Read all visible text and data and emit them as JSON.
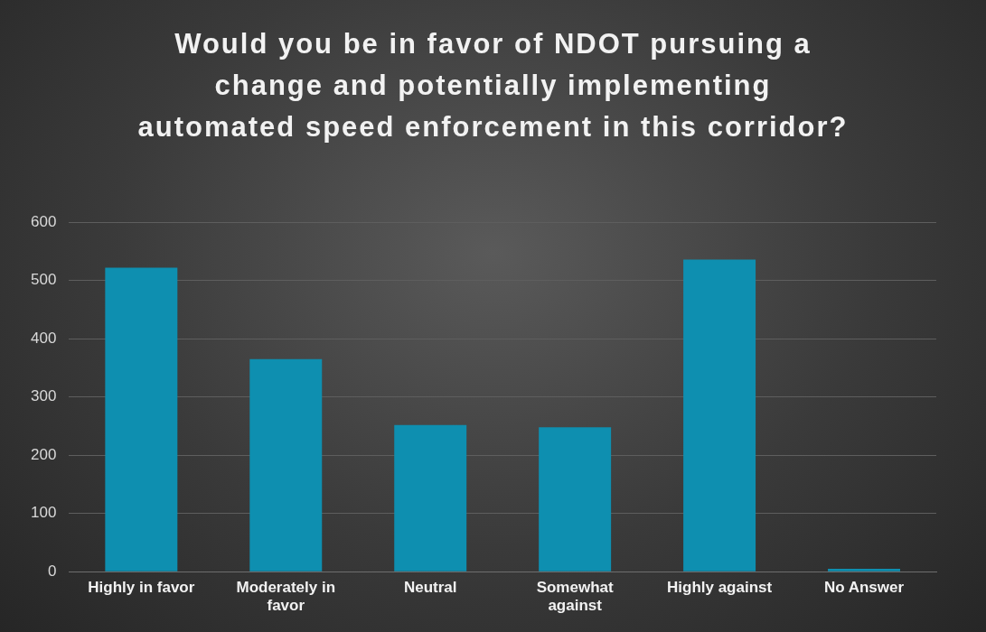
{
  "chart_data": {
    "type": "bar",
    "title": "Would you be in favor of NDOT pursuing a change and potentially implementing automated speed enforcement in this corridor?",
    "categories": [
      "Highly in favor",
      "Moderately in favor",
      "Neutral",
      "Somewhat against",
      "Highly against",
      "No Answer"
    ],
    "values": [
      522,
      365,
      252,
      248,
      536,
      5
    ],
    "color": "#0e8fb0",
    "ylim": [
      0,
      600
    ],
    "yticks": [
      0,
      100,
      200,
      300,
      400,
      500,
      600
    ],
    "grid": "y",
    "legend": false
  }
}
